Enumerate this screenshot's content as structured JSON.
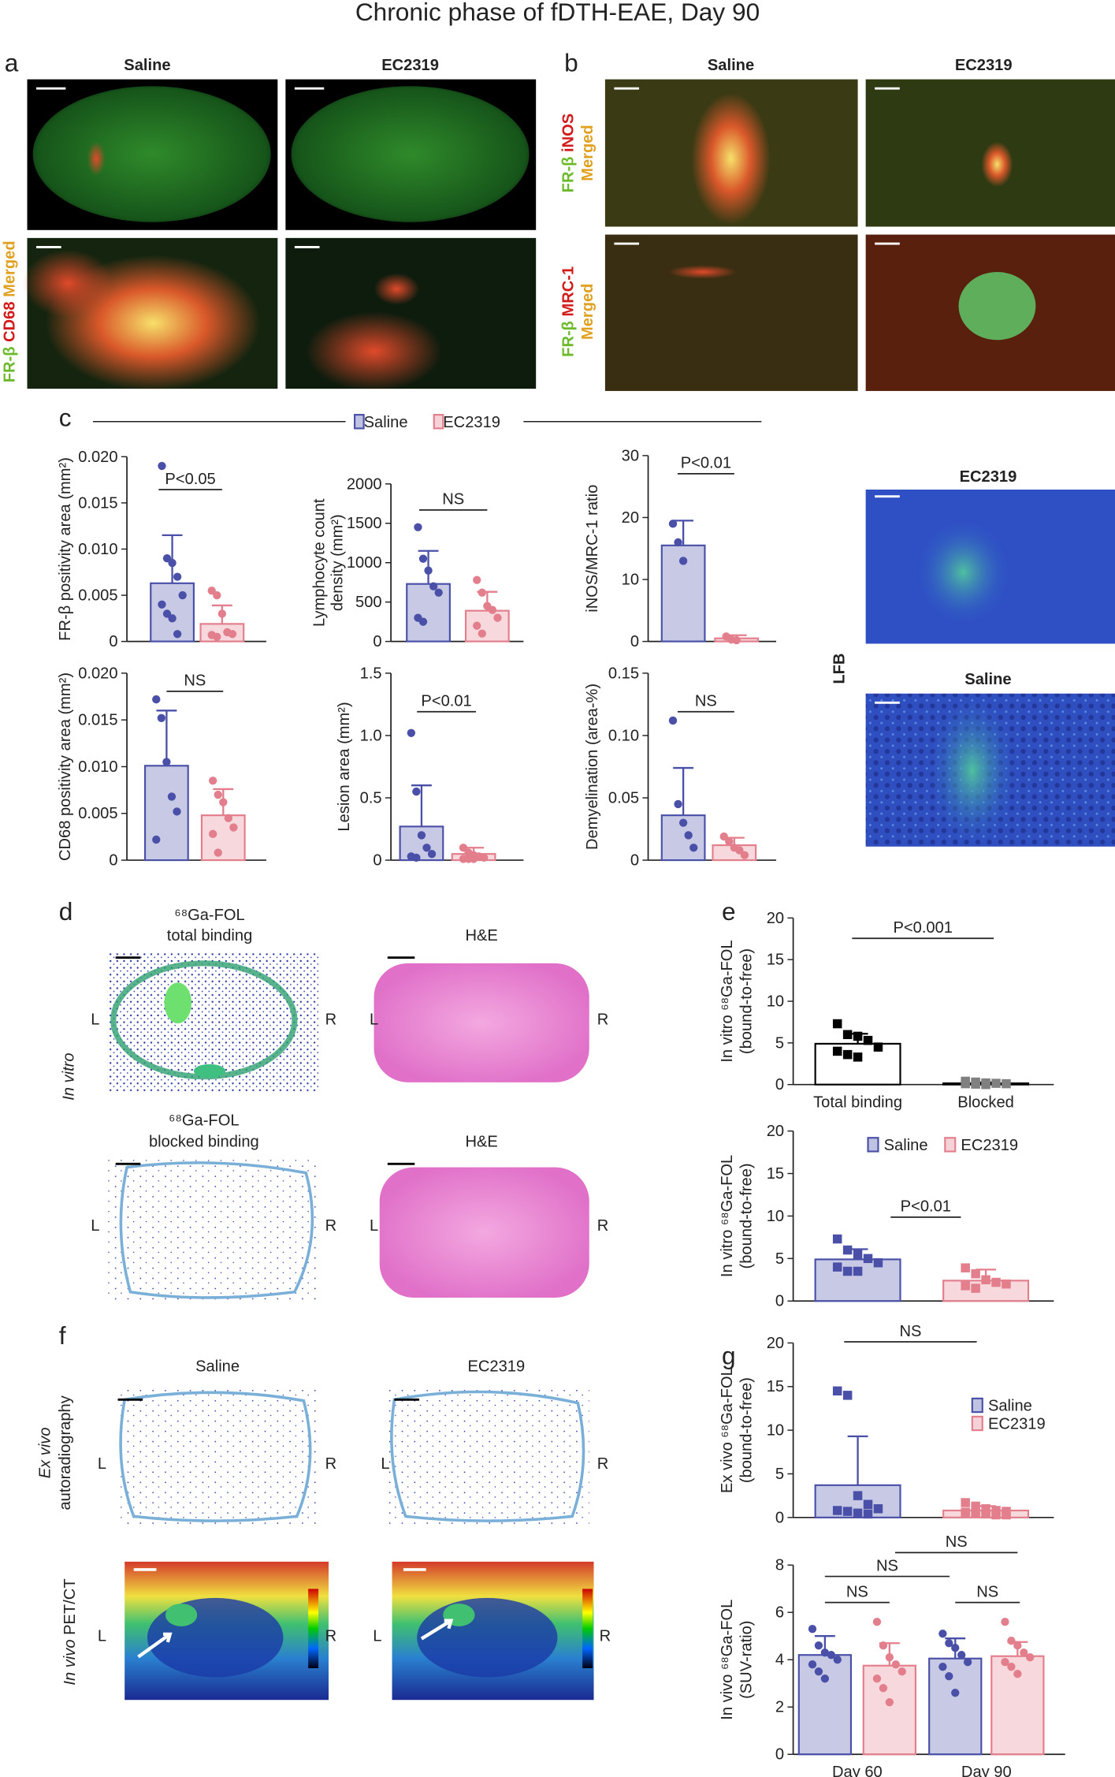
{
  "figure": {
    "title": "Chronic phase of fDTH-EAE, Day 90",
    "panel_a": {
      "letter": "a",
      "columns": [
        "Saline",
        "EC2319"
      ],
      "row_label": [
        "FR-β",
        "CD68",
        "Merged"
      ]
    },
    "panel_b": {
      "letter": "b",
      "columns": [
        "Saline",
        "EC2319"
      ],
      "row_labels": [
        {
          "line1": [
            "FR-β",
            "iNOS"
          ],
          "line2": "Merged"
        },
        {
          "line1": [
            "FR-β",
            "MRC-1"
          ],
          "line2": "Merged"
        }
      ]
    },
    "panel_c": {
      "letter": "c",
      "legend": [
        {
          "name": "Saline",
          "color": "#4a50a8"
        },
        {
          "name": "EC2319",
          "color": "#e37e8c"
        }
      ]
    },
    "lfb": {
      "label": "LFB",
      "titles": [
        "EC2319",
        "Saline"
      ]
    },
    "panel_d": {
      "letter": "d",
      "side_label": "In vitro",
      "titles": [
        [
          "⁶⁸Ga-FOL",
          "total binding"
        ],
        [
          "H&E"
        ],
        [
          "⁶⁸Ga-FOL",
          "blocked binding"
        ],
        [
          "H&E"
        ]
      ],
      "sides": [
        [
          "L",
          "R"
        ],
        [
          "L",
          "R"
        ],
        [
          "L",
          "R"
        ],
        [
          "L",
          "R"
        ]
      ]
    },
    "panel_e": {
      "letter": "e"
    },
    "panel_f": {
      "letter": "f",
      "columns": [
        "Saline",
        "EC2319"
      ],
      "row_labels": [
        [
          "Ex vivo",
          "autoradiography"
        ],
        [
          "In vivo",
          "PET/CT"
        ]
      ],
      "sides": [
        [
          "L",
          "R"
        ],
        [
          "L",
          "R"
        ],
        [
          "L",
          "R"
        ],
        [
          "L",
          "R"
        ]
      ]
    },
    "panel_g": {
      "letter": "g"
    }
  },
  "chart_data": [
    {
      "type": "bar",
      "marker": "circle",
      "ylabel": [
        "FR-β positivity area (mm²)"
      ],
      "categories": [
        null
      ],
      "ylim": [
        0,
        0.02
      ],
      "yticks": [
        0,
        0.005,
        {
          "value": 0.01,
          "label": "0.010"
        },
        0.015,
        {
          "value": 0.02,
          "label": "0.020"
        }
      ],
      "series": [
        {
          "color": "#4a50a8",
          "values": [
            0.0063
          ],
          "errors": [
            0.0052
          ],
          "points": [
            [
              0.019,
              0.009,
              0.0085,
              0.007,
              0.005,
              0.004,
              0.003,
              0.0025,
              0.0008
            ]
          ]
        },
        {
          "color": "#e37e8c",
          "values": [
            0.0019
          ],
          "errors": [
            0.002
          ],
          "points": [
            [
              0.0055,
              0.005,
              0.003,
              0.001,
              0.0008,
              0.0007,
              0.0005
            ]
          ]
        }
      ],
      "annotations": [
        "P<0.05"
      ]
    },
    {
      "type": "bar",
      "marker": "circle",
      "ylabel": [
        "Lymphocyte count",
        "density (mm²)"
      ],
      "categories": [
        null
      ],
      "ylim": [
        0,
        2000
      ],
      "yticks": [
        0,
        500,
        1000,
        1500,
        2000
      ],
      "series": [
        {
          "color": "#4a50a8",
          "values": [
            730
          ],
          "errors": [
            420
          ],
          "points": [
            [
              1450,
              1050,
              900,
              700,
              620,
              300,
              250
            ]
          ]
        },
        {
          "color": "#e37e8c",
          "values": [
            390
          ],
          "errors": [
            240
          ],
          "points": [
            [
              780,
              620,
              450,
              400,
              300,
              200,
              100
            ]
          ]
        }
      ],
      "annotations": [
        "NS"
      ]
    },
    {
      "type": "bar",
      "marker": "circle",
      "ylabel": [
        "iNOS/MRC-1 ratio"
      ],
      "categories": [
        null
      ],
      "ylim": [
        0,
        30
      ],
      "yticks": [
        0,
        10,
        20,
        30
      ],
      "series": [
        {
          "color": "#4a50a8",
          "values": [
            15.5
          ],
          "errors": [
            4
          ],
          "points": [
            [
              19,
              16,
              13
            ]
          ]
        },
        {
          "color": "#e37e8c",
          "values": [
            0.5
          ],
          "errors": [
            0.5
          ],
          "points": [
            [
              0.8,
              0.3,
              0.2
            ]
          ]
        }
      ],
      "annotations": [
        "P<0.01"
      ]
    },
    {
      "type": "bar",
      "marker": "circle",
      "ylabel": [
        "CD68 positivity area (mm²)"
      ],
      "categories": [
        null
      ],
      "ylim": [
        0,
        0.02
      ],
      "yticks": [
        0,
        0.005,
        {
          "value": 0.01,
          "label": "0.010"
        },
        0.015,
        {
          "value": 0.02,
          "label": "0.020"
        }
      ],
      "series": [
        {
          "color": "#4a50a8",
          "values": [
            0.0101
          ],
          "errors": [
            0.0059
          ],
          "points": [
            [
              0.0172,
              0.0152,
              0.0105,
              0.0068,
              0.0052,
              0.0022
            ]
          ]
        },
        {
          "color": "#e37e8c",
          "values": [
            0.0048
          ],
          "errors": [
            0.0028
          ],
          "points": [
            [
              0.0085,
              0.007,
              0.0062,
              0.0045,
              0.0035,
              0.0028,
              0.0008
            ]
          ]
        }
      ],
      "annotations": [
        "NS"
      ]
    },
    {
      "type": "bar",
      "marker": "circle",
      "ylabel": [
        "Lesion area (mm²)"
      ],
      "categories": [
        null
      ],
      "ylim": [
        0,
        1.5
      ],
      "yticks": [
        0,
        0.5,
        {
          "value": 1,
          "label": "1.0"
        },
        1.5
      ],
      "series": [
        {
          "color": "#4a50a8",
          "values": [
            0.27
          ],
          "errors": [
            0.33
          ],
          "points": [
            [
              1.02,
              0.55,
              0.2,
              0.1,
              0.05,
              0.03,
              0.02
            ]
          ]
        },
        {
          "color": "#e37e8c",
          "values": [
            0.05
          ],
          "errors": [
            0.05
          ],
          "points": [
            [
              0.1,
              0.06,
              0.04,
              0.03,
              0.02,
              0.01,
              0.01,
              0.01
            ]
          ]
        }
      ],
      "annotations": [
        "P<0.01"
      ]
    },
    {
      "type": "bar",
      "marker": "circle",
      "ylabel": [
        "Demyelination (area-%)"
      ],
      "categories": [
        null
      ],
      "ylim": [
        0,
        0.15
      ],
      "yticks": [
        0,
        0.05,
        {
          "value": 0.1,
          "label": "0.10"
        },
        0.15
      ],
      "series": [
        {
          "color": "#4a50a8",
          "values": [
            0.036
          ],
          "errors": [
            0.038
          ],
          "points": [
            [
              0.112,
              0.045,
              0.03,
              0.02,
              0.01
            ]
          ]
        },
        {
          "color": "#e37e8c",
          "values": [
            0.012
          ],
          "errors": [
            0.006
          ],
          "points": [
            [
              0.019,
              0.015,
              0.01,
              0.008,
              0.004
            ]
          ]
        }
      ],
      "annotations": [
        "NS"
      ]
    },
    {
      "type": "bar",
      "marker": "square",
      "ylabel": [
        "In vitro ⁶⁸Ga-FOL",
        "(bound-to-free)"
      ],
      "categories": [
        "Total binding",
        "Blocked"
      ],
      "ylim": [
        0,
        20
      ],
      "yticks": [
        0,
        5,
        10,
        15,
        20
      ],
      "series": [
        {
          "color": "#000000",
          "fill": "#ffffff",
          "point_colors": [
            "#000000",
            "#808080"
          ],
          "values": [
            4.9,
            0.15
          ],
          "errors": [
            1.2,
            0.1
          ],
          "points": [
            [
              7.3,
              6,
              5.8,
              5.3,
              4.5,
              4,
              3.6,
              3.3
            ],
            [
              0.4,
              0.3,
              0.2,
              0.15,
              0.1,
              0.1,
              0.05,
              0
            ]
          ]
        }
      ],
      "annotations": [
        "P<0.001"
      ]
    },
    {
      "type": "bar",
      "marker": "square",
      "ylabel": [
        "In vitro ⁶⁸Ga-FOL",
        "(bound-to-free)"
      ],
      "categories": [
        null
      ],
      "ylim": [
        0,
        20
      ],
      "yticks": [
        0,
        5,
        10,
        15,
        20
      ],
      "legend": "top",
      "series": [
        {
          "name": "Saline",
          "color": "#4a50a8",
          "values": [
            4.9
          ],
          "errors": [
            1.2
          ],
          "points": [
            [
              7.3,
              6,
              5.5,
              5,
              4.5,
              4,
              3.5,
              3.5
            ]
          ]
        },
        {
          "name": "EC2319",
          "color": "#e37e8c",
          "values": [
            2.4
          ],
          "errors": [
            1.3
          ],
          "points": [
            [
              3.9,
              3.2,
              2.5,
              2.2,
              2,
              1.8,
              1.5
            ]
          ]
        }
      ],
      "annotations": [
        "P<0.01"
      ]
    },
    {
      "type": "bar",
      "marker": "square",
      "ylabel": [
        "Ex vivo ⁶⁸Ga-FOL",
        "(bound-to-free)"
      ],
      "categories": [
        null
      ],
      "ylim": [
        0,
        20
      ],
      "yticks": [
        0,
        5,
        10,
        15,
        20
      ],
      "legend": "right",
      "series": [
        {
          "name": "Saline",
          "color": "#4a50a8",
          "values": [
            3.7
          ],
          "errors": [
            5.6
          ],
          "points": [
            [
              14.5,
              14,
              2.5,
              1.5,
              1,
              0.8,
              0.7,
              0.5,
              0.4
            ]
          ]
        },
        {
          "name": "EC2319",
          "color": "#e37e8c",
          "values": [
            0.8
          ],
          "errors": [
            0.5
          ],
          "points": [
            [
              1.7,
              1.3,
              1,
              0.8,
              0.7,
              0.6,
              0.5,
              0.4,
              0.3,
              0.3
            ]
          ]
        }
      ],
      "annotations": [
        "NS"
      ]
    },
    {
      "type": "bar",
      "marker": "circle",
      "ylabel": [
        "In vivo ⁶⁸Ga-FOL",
        "(SUV-ratio)"
      ],
      "categories": [
        "Day 60",
        "Day 90"
      ],
      "ylim": [
        0,
        8
      ],
      "yticks": [
        0,
        2,
        4,
        6,
        8
      ],
      "series": [
        {
          "color": "#4a50a8",
          "values": [
            4.2,
            4.05
          ],
          "errors": [
            0.8,
            0.85
          ],
          "points": [
            [
              5.3,
              4.6,
              4.3,
              4.2,
              4,
              3.8,
              3.5,
              3.2
            ],
            [
              5.1,
              4.7,
              4.5,
              4.2,
              3.9,
              3.7,
              3.3,
              2.6
            ]
          ]
        },
        {
          "color": "#e37e8c",
          "values": [
            3.75,
            4.15
          ],
          "errors": [
            0.95,
            0.6
          ],
          "points": [
            [
              5.6,
              4.6,
              4.1,
              3.8,
              3.5,
              3.2,
              2.8,
              2.2
            ],
            [
              5.6,
              4.8,
              4.6,
              4.3,
              4.1,
              3.9,
              3.7,
              3.4
            ]
          ]
        }
      ],
      "annotations": [
        "NS",
        "NS",
        "NS",
        "NS"
      ]
    }
  ]
}
